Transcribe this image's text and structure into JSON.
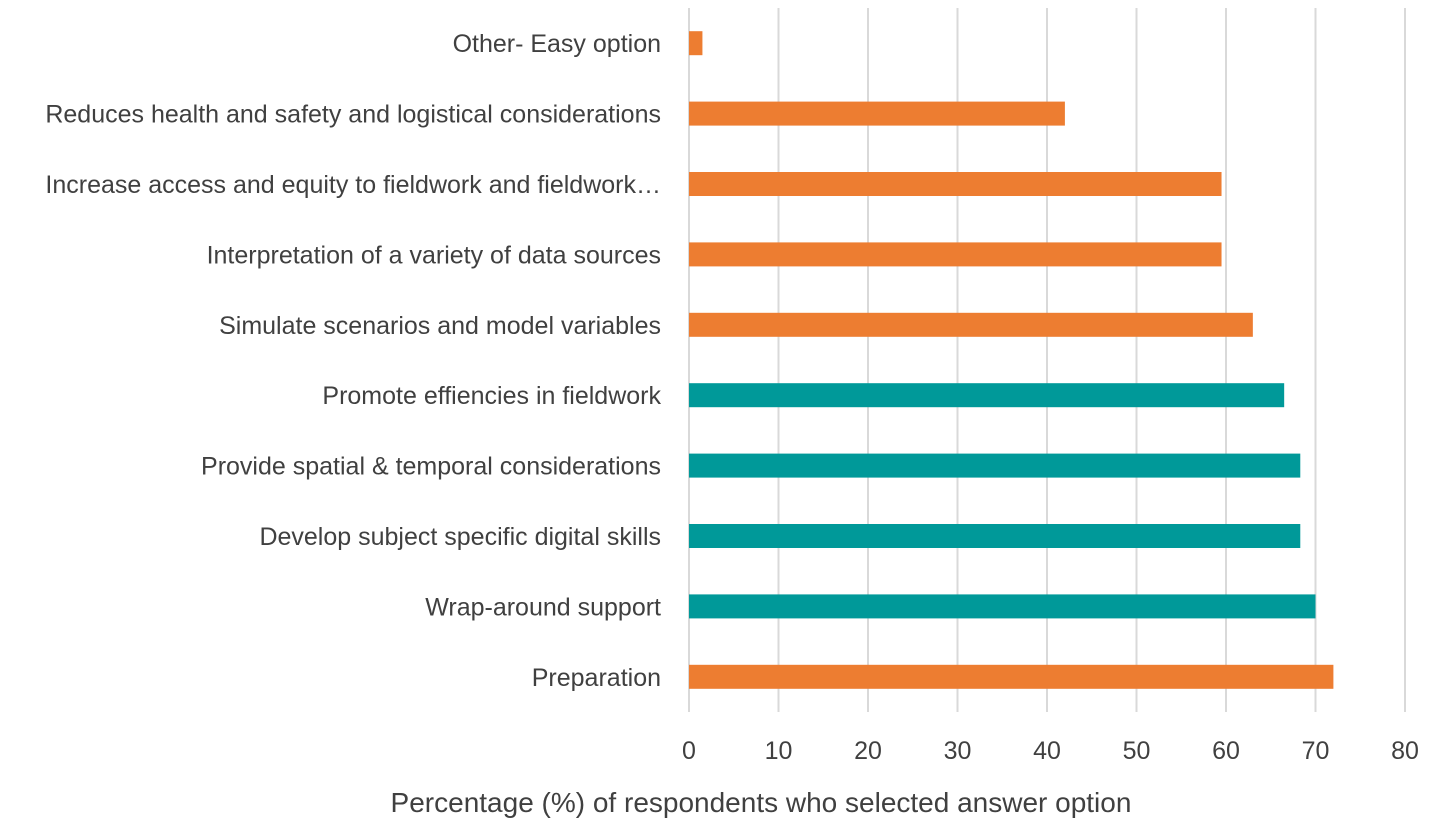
{
  "chart_data": {
    "type": "bar",
    "orientation": "horizontal",
    "title": "",
    "xlabel": "Percentage (%) of respondents who selected answer option",
    "ylabel": "",
    "xlim": [
      0,
      80
    ],
    "xticks": [
      0,
      10,
      20,
      30,
      40,
      50,
      60,
      70,
      80
    ],
    "grid": "vertical",
    "legend": "none",
    "colors": {
      "orange": "#ED7D31",
      "teal": "#009999",
      "grid": "#D9D9D9",
      "text": "#404040"
    },
    "bars": [
      {
        "label": "Other- Easy option",
        "value": 1.5,
        "color": "orange"
      },
      {
        "label": "Reduces health and safety and logistical considerations",
        "value": 42,
        "color": "orange"
      },
      {
        "label": "Increase access and equity to fieldwork and fieldwork…",
        "value": 59.5,
        "color": "orange"
      },
      {
        "label": "Interpretation of a variety of data sources",
        "value": 59.5,
        "color": "orange"
      },
      {
        "label": "Simulate scenarios and model variables",
        "value": 63,
        "color": "orange"
      },
      {
        "label": "Promote effiencies in fieldwork",
        "value": 66.5,
        "color": "teal"
      },
      {
        "label": "Provide spatial & temporal considerations",
        "value": 68.3,
        "color": "teal"
      },
      {
        "label": "Develop subject specific digital skills",
        "value": 68.3,
        "color": "teal"
      },
      {
        "label": "Wrap-around support",
        "value": 70,
        "color": "teal"
      },
      {
        "label": "Preparation",
        "value": 72,
        "color": "orange"
      }
    ]
  }
}
